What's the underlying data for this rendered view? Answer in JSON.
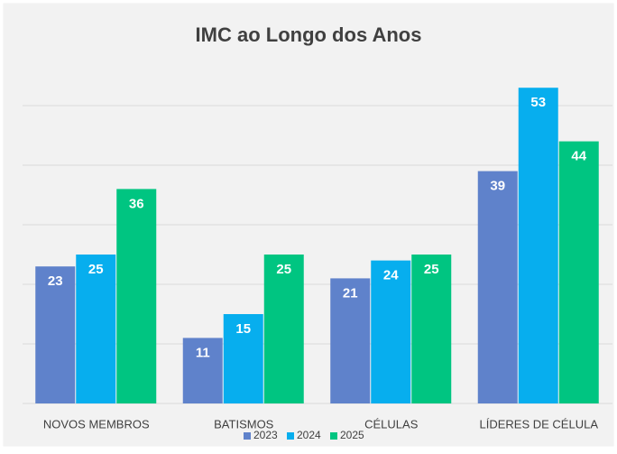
{
  "chart_data": {
    "type": "bar",
    "title": "IMC ao Longo dos Anos",
    "categories": [
      "NOVOS MEMBROS",
      "BATISMOS",
      "CÉLULAS",
      "LÍDERES DE CÉLULA"
    ],
    "series": [
      {
        "name": "2023",
        "color": "#5f82cb",
        "values": [
          23,
          11,
          21,
          39
        ]
      },
      {
        "name": "2024",
        "color": "#07aeee",
        "values": [
          25,
          15,
          24,
          53
        ]
      },
      {
        "name": "2025",
        "color": "#00c581",
        "values": [
          36,
          25,
          25,
          44
        ]
      }
    ],
    "ylim": [
      0,
      60
    ],
    "yticks": [
      0,
      10,
      20,
      30,
      40,
      50
    ],
    "grid": true,
    "legend": "bottom"
  }
}
